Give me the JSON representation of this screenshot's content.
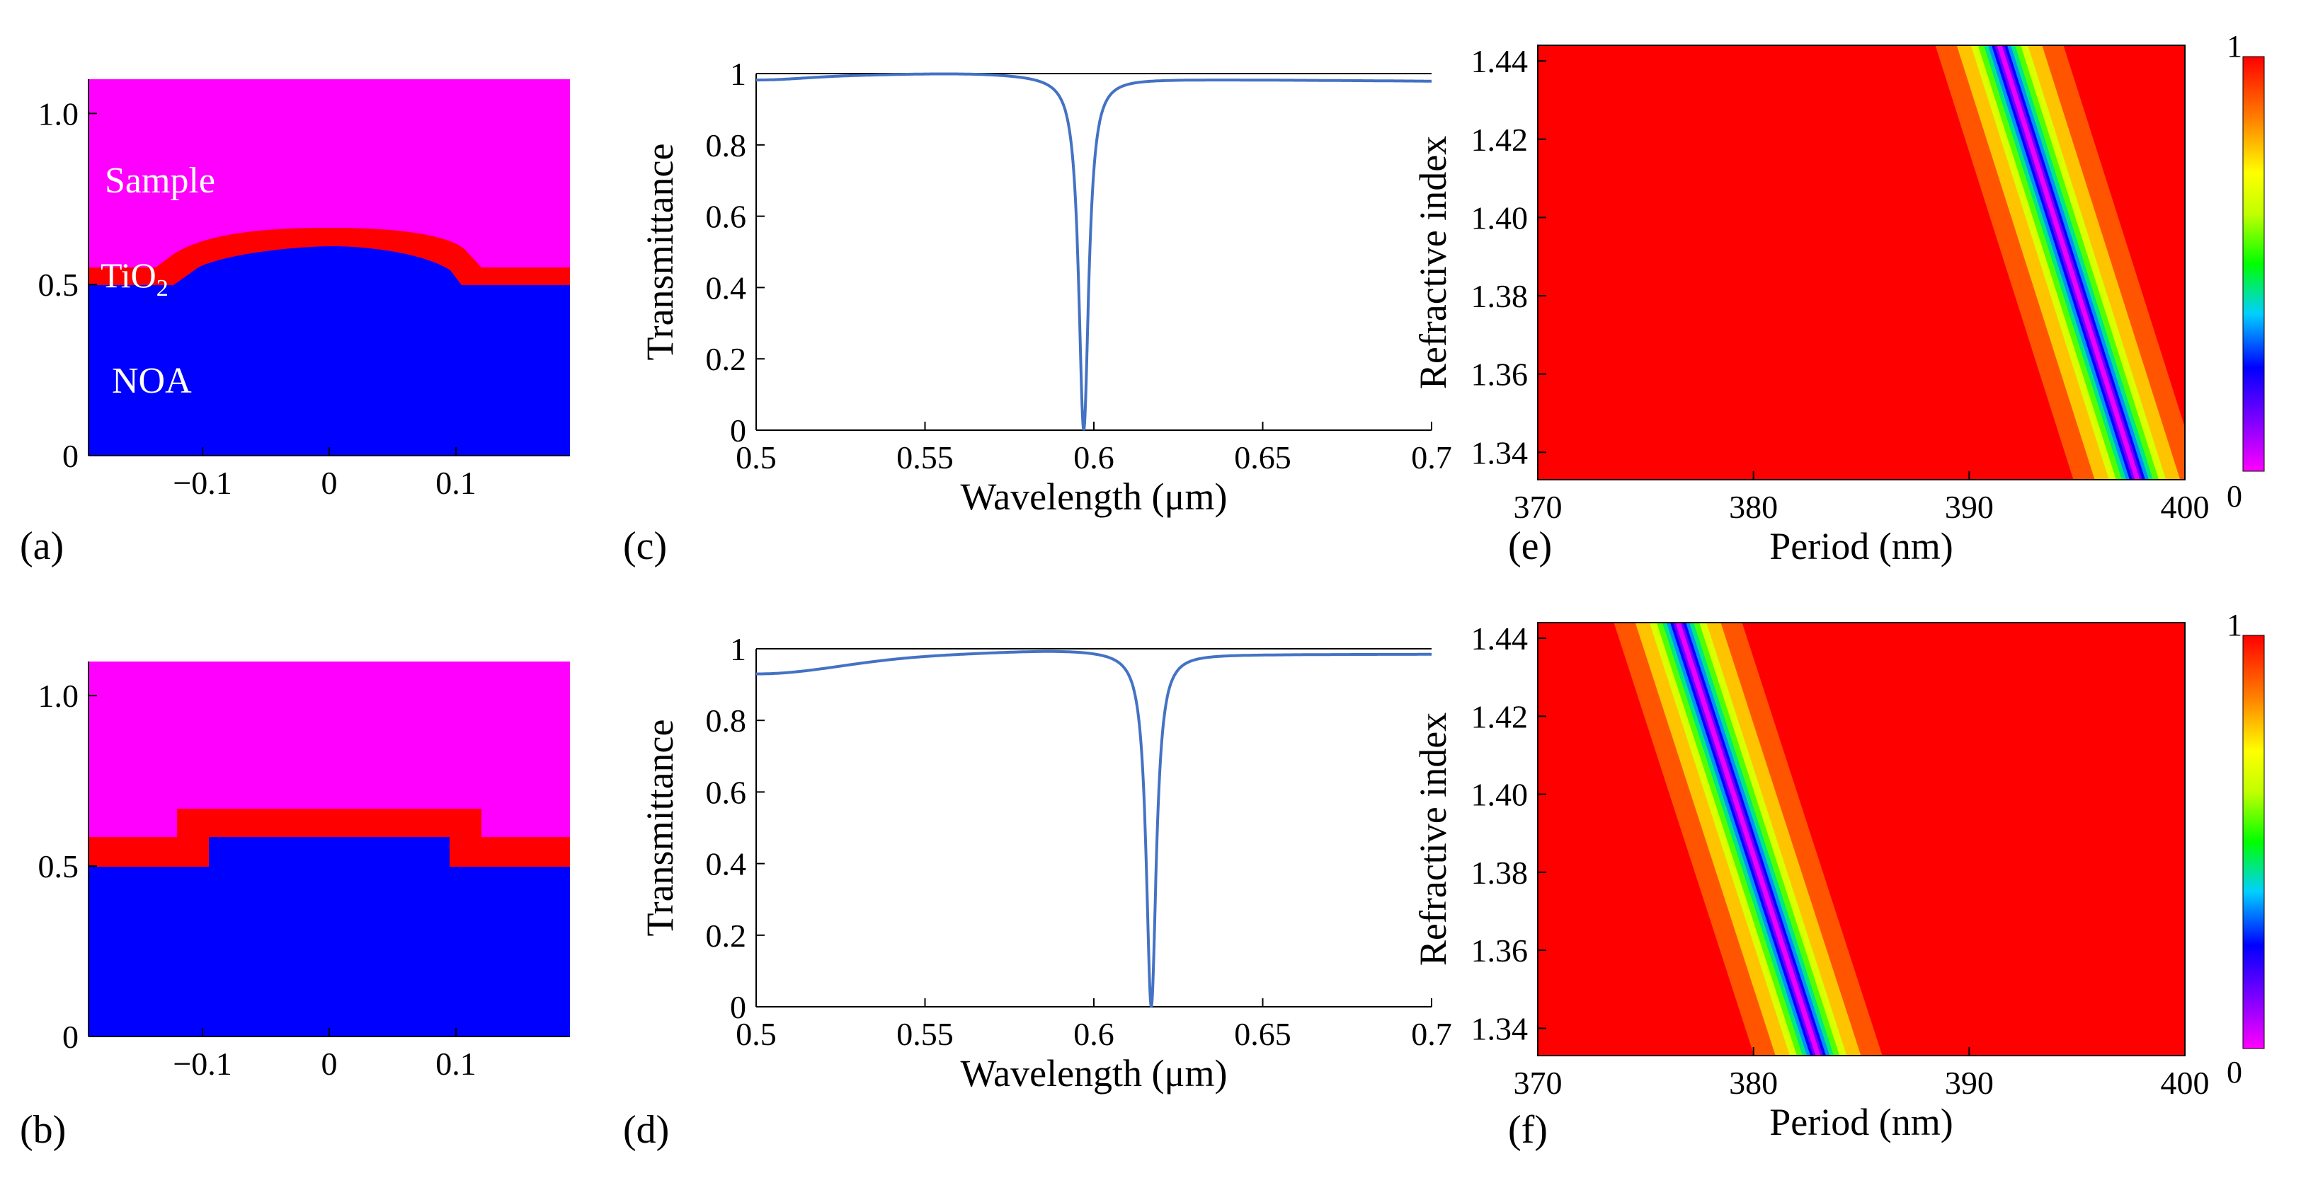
{
  "figure": {
    "panels": {
      "a": {
        "label": "(a)",
        "type": "structure",
        "shape": "curved",
        "y_ticks": [
          "0",
          "0.5",
          "1.0"
        ],
        "x_ticks": [
          "-0.1",
          "0",
          "0.1"
        ],
        "xlim": [
          -0.19,
          0.19
        ],
        "ylim": [
          0,
          1.1
        ],
        "region_labels": {
          "sample": "Sample",
          "tio2_main": "TiO",
          "tio2_sub": "2",
          "noa": "NOA"
        },
        "colors": {
          "sample": "#ff00ff",
          "tio2": "#ff0000",
          "noa": "#0000ff"
        }
      },
      "b": {
        "label": "(b)",
        "type": "structure",
        "shape": "rectangular",
        "y_ticks": [
          "0",
          "0.5",
          "1.0"
        ],
        "x_ticks": [
          "-0.1",
          "0",
          "0.1"
        ],
        "xlim": [
          -0.19,
          0.19
        ],
        "ylim": [
          0,
          1.1
        ],
        "colors": {
          "sample": "#ff00ff",
          "tio2": "#ff0000",
          "noa": "#0000ff"
        }
      }
    },
    "colorbar": {
      "max_label": "1",
      "min_label": "0"
    }
  },
  "chart_data": [
    {
      "panel": "c",
      "label": "(c)",
      "type": "line",
      "xlabel": "Wavelength (μm)",
      "ylabel": "Transmittance",
      "xlim": [
        0.5,
        0.7
      ],
      "ylim": [
        0,
        1
      ],
      "x_ticks": [
        "0.5",
        "0.55",
        "0.6",
        "0.65",
        "0.7"
      ],
      "y_ticks": [
        "0",
        "0.2",
        "0.4",
        "0.6",
        "0.8",
        "1"
      ],
      "series": [
        {
          "name": "T",
          "color": "#4472c4",
          "resonance_um": 0.597,
          "min_value": 0.0
        }
      ]
    },
    {
      "panel": "d",
      "label": "(d)",
      "type": "line",
      "xlabel": "Wavelength (μm)",
      "ylabel": "Transmittance",
      "xlim": [
        0.5,
        0.7
      ],
      "ylim": [
        0,
        1
      ],
      "x_ticks": [
        "0.5",
        "0.55",
        "0.6",
        "0.65",
        "0.7"
      ],
      "y_ticks": [
        "0",
        "0.2",
        "0.4",
        "0.6",
        "0.8",
        "1"
      ],
      "series": [
        {
          "name": "T",
          "color": "#4472c4",
          "resonance_um": 0.617,
          "min_value": 0.0
        }
      ]
    },
    {
      "panel": "e",
      "label": "(e)",
      "type": "heatmap",
      "xlabel": "Period (nm)",
      "ylabel": "Refractive index",
      "xlim": [
        370,
        400
      ],
      "ylim": [
        1.333,
        1.444
      ],
      "x_ticks": [
        "370",
        "380",
        "390",
        "400"
      ],
      "y_ticks": [
        "1.34",
        "1.36",
        "1.38",
        "1.40",
        "1.42",
        "1.44"
      ],
      "dip_line": {
        "period_at_top": 391.4,
        "period_at_bottom": 397.8
      },
      "zlim": [
        0,
        1
      ]
    },
    {
      "panel": "f",
      "label": "(f)",
      "type": "heatmap",
      "xlabel": "Period (nm)",
      "ylabel": "Refractive index",
      "xlim": [
        370,
        400
      ],
      "ylim": [
        1.333,
        1.444
      ],
      "x_ticks": [
        "370",
        "380",
        "390",
        "400"
      ],
      "y_ticks": [
        "1.34",
        "1.36",
        "1.38",
        "1.40",
        "1.42",
        "1.44"
      ],
      "dip_line": {
        "period_at_top": 376.5,
        "period_at_bottom": 383.0
      },
      "zlim": [
        0,
        1
      ]
    }
  ]
}
